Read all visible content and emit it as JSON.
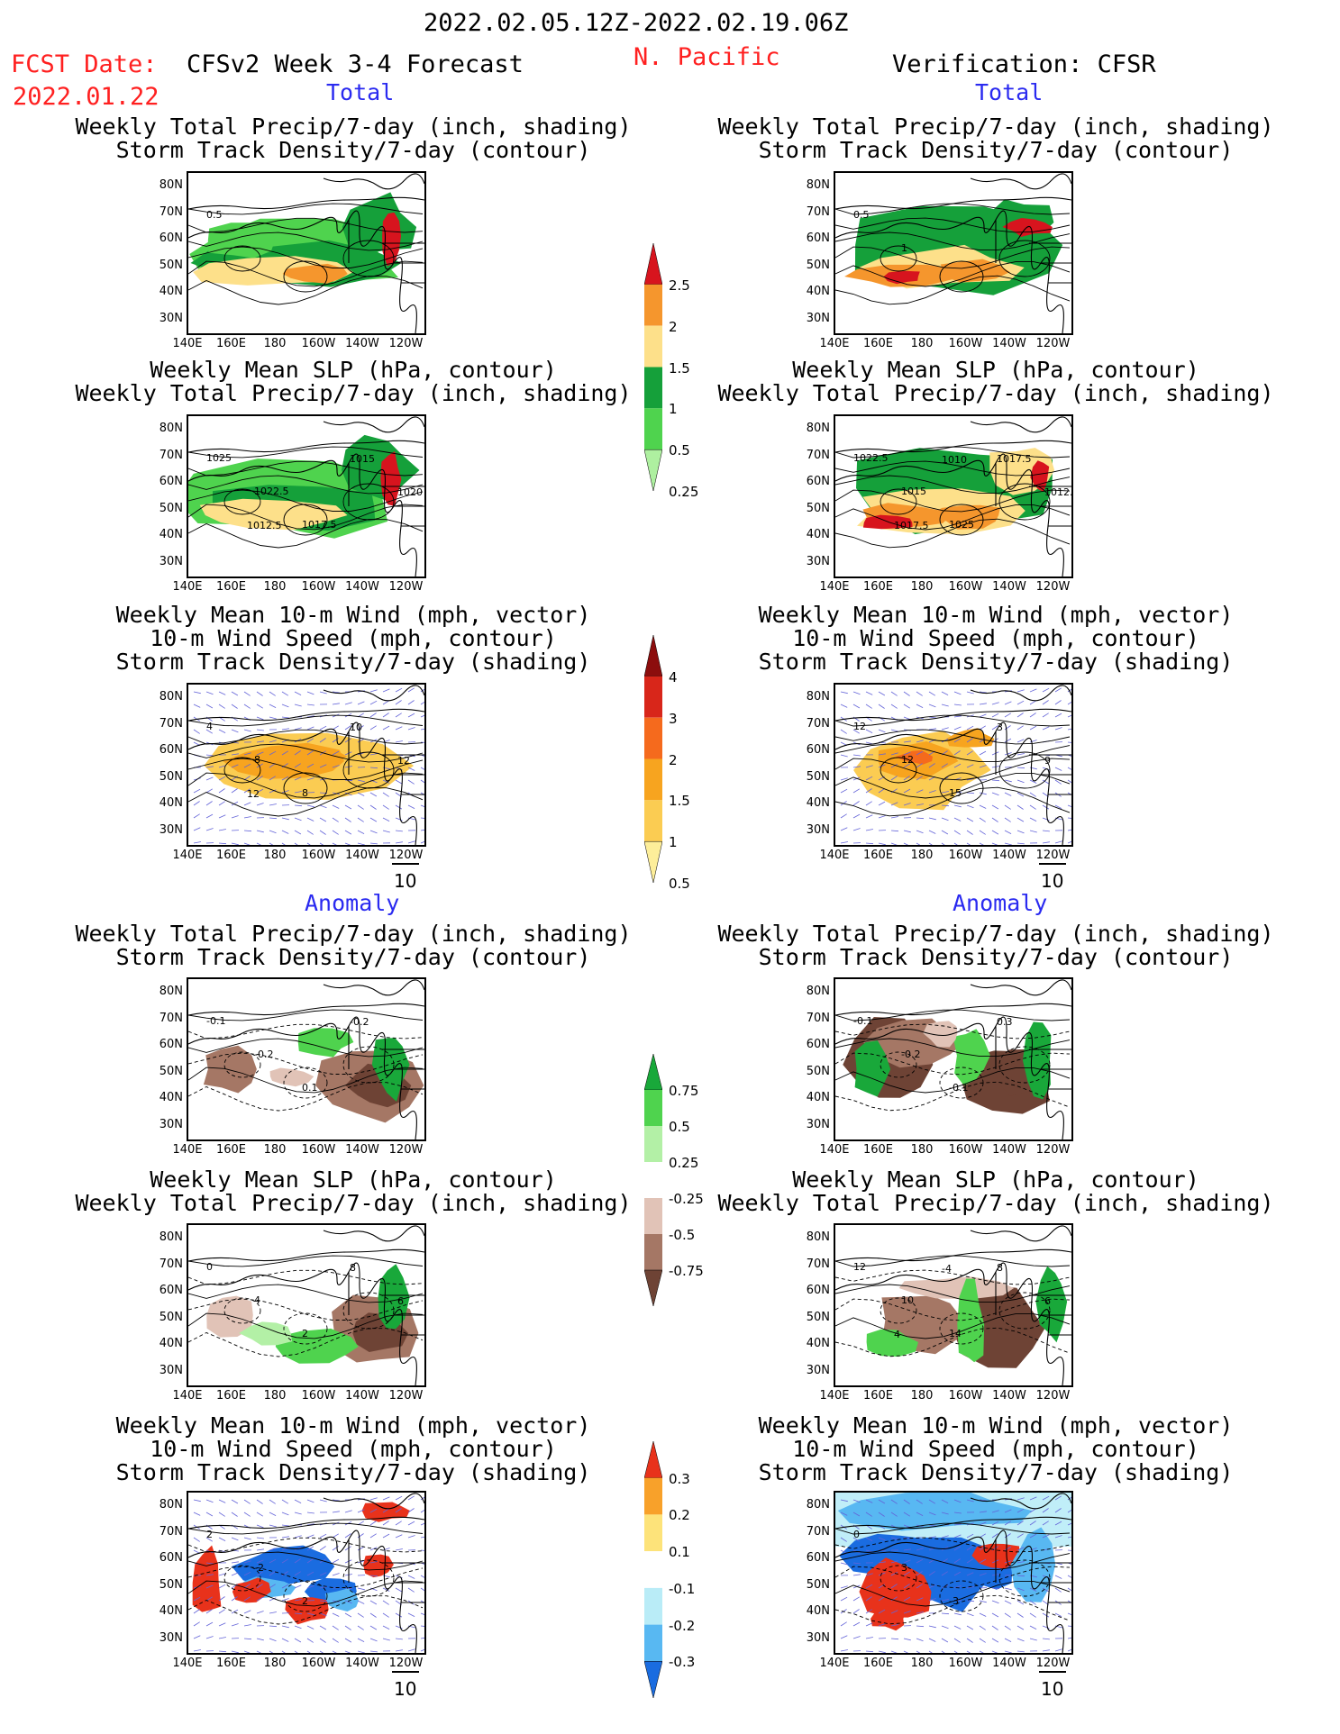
{
  "header": {
    "date_range": "2022.02.05.12Z-2022.02.19.06Z",
    "fcst_label": "FCST Date:",
    "fcst_date": "2022.01.22",
    "model_title": "CFSv2 Week 3-4 Forecast",
    "region": "N. Pacific",
    "verification": "Verification: CFSR"
  },
  "sections": {
    "total_left": "Total",
    "total_right": "Total",
    "anomaly_left": "Anomaly",
    "anomaly_right": "Anomaly"
  },
  "panel_titles": {
    "p1": [
      "Weekly Total Precip/7-day (inch, shading)",
      "Storm Track Density/7-day (contour)"
    ],
    "p2": [
      "Weekly Mean SLP (hPa, contour)",
      "Weekly Total Precip/7-day (inch, shading)"
    ],
    "p3": [
      "Weekly Mean 10-m Wind (mph, vector)",
      "10-m Wind Speed (mph, contour)",
      "Storm Track Density/7-day (shading)"
    ]
  },
  "axes": {
    "lat_ticks": [
      "80N",
      "70N",
      "60N",
      "50N",
      "40N",
      "30N"
    ],
    "lon_ticks": [
      "140E",
      "160E",
      "180",
      "160W",
      "140W",
      "120W"
    ]
  },
  "vector_reference": "10",
  "colorbars": {
    "precip_total": {
      "labels": [
        "2.5",
        "2",
        "1.5",
        "1",
        "0.5",
        "0.25"
      ],
      "colors": [
        "#d7141e",
        "#f5962d",
        "#fde08a",
        "#15a03a",
        "#4fd34e",
        "#aef0a0"
      ]
    },
    "storm_total": {
      "labels": [
        "4",
        "3",
        "2",
        "1.5",
        "1",
        "0.5"
      ],
      "colors": [
        "#8c0d0d",
        "#d8261a",
        "#f56a1d",
        "#f7a41f",
        "#fbcc52",
        "#fdee9a"
      ]
    },
    "precip_anom": {
      "labels": [
        "0.75",
        "0.5",
        "0.25",
        "-0.25",
        "-0.5",
        "-0.75"
      ],
      "colors": [
        "#19a83a",
        "#4fd34e",
        "#b3f0a6",
        "#ffffff",
        "#e1c3b7",
        "#a57765",
        "#6e4335"
      ]
    },
    "storm_anom": {
      "labels": [
        "0.3",
        "0.2",
        "0.1",
        "-0.1",
        "-0.2",
        "-0.3"
      ],
      "colors": [
        "#e8321b",
        "#f8a12a",
        "#fde37a",
        "#ffffff",
        "#b9ecf7",
        "#58b8f2",
        "#1a6ce0"
      ]
    },
    "ref_colors": {
      "land_outline": "#000000",
      "title_red": "#ff2020",
      "section_blue": "#2a2af0",
      "wind_vector": "#6464d8"
    }
  },
  "contour_labels": {
    "L1": [
      "0.5"
    ],
    "R1": [
      "0.5",
      "1"
    ],
    "L2": [
      "1025",
      "1022.5",
      "1017.5",
      "1015",
      "1020",
      "1012.5"
    ],
    "R2": [
      "1022.5",
      "1015",
      "1025",
      "1017.5",
      "1012.5",
      "1017.5",
      "1010"
    ],
    "L3": [
      "4",
      "8",
      "8",
      "10",
      "12",
      "12"
    ],
    "R3": [
      "12",
      "12",
      "15",
      "3",
      "9"
    ],
    "L4": [
      "-0.1",
      "-0.2",
      "0.1",
      "-0.2"
    ],
    "R4": [
      "-0.1",
      "-0.2",
      "-0.1",
      "0.3"
    ],
    "L5": [
      "0",
      "4",
      "2",
      "8",
      "6"
    ],
    "R5": [
      "12",
      "10",
      "14",
      "8",
      "6",
      "4",
      "-4"
    ],
    "L6": [
      "2",
      "-2",
      "2"
    ],
    "R6": [
      "0",
      "3",
      "-3"
    ]
  }
}
